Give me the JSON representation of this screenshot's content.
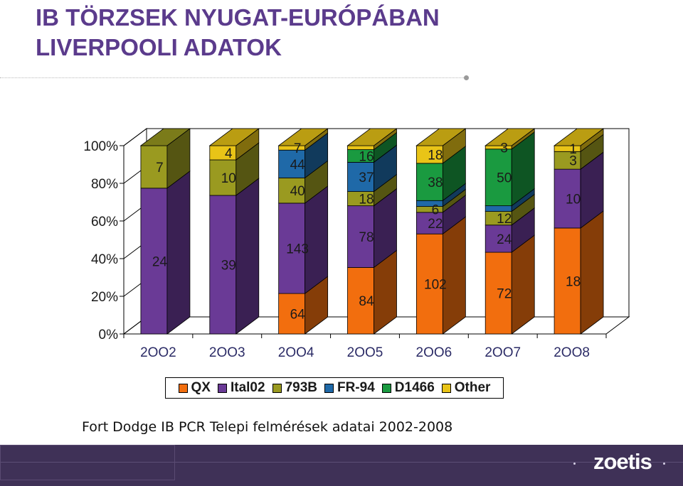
{
  "header": {
    "title_line1": "IB TÖRZSEK NYUGAT-EURÓPÁBAN",
    "title_line2": "LIVERPOOLI ADATOK"
  },
  "chart_data": {
    "type": "bar",
    "stacked": "percent",
    "categories": [
      "2OO2",
      "2OO3",
      "2OO4",
      "2OO5",
      "2OO6",
      "2OO7",
      "2OO8"
    ],
    "series": [
      {
        "name": "QX",
        "color": "#f26e0e",
        "values": [
          0,
          0,
          64,
          84,
          102,
          72,
          18
        ]
      },
      {
        "name": "Ital02",
        "color": "#6a3a96",
        "values": [
          24,
          39,
          143,
          78,
          22,
          24,
          10
        ]
      },
      {
        "name": "793B",
        "color": "#9a9a20",
        "values": [
          7,
          10,
          40,
          18,
          6,
          12,
          3
        ]
      },
      {
        "name": "FR-94",
        "color": "#1f69a8",
        "values": [
          0,
          0,
          44,
          37,
          6,
          5,
          0
        ]
      },
      {
        "name": "D1466",
        "color": "#1a9a40",
        "values": [
          0,
          0,
          0,
          16,
          38,
          50,
          0
        ]
      },
      {
        "name": "Other",
        "color": "#e9c417",
        "values": [
          0,
          4,
          7,
          5,
          18,
          3,
          1
        ]
      }
    ],
    "data_labels": [
      [
        {
          "series": 1,
          "text": "24"
        },
        {
          "series": 2,
          "text": "7"
        }
      ],
      [
        {
          "series": 1,
          "text": "39"
        },
        {
          "series": 2,
          "text": "10"
        },
        {
          "series": 5,
          "text": "4"
        }
      ],
      [
        {
          "series": 0,
          "text": "64"
        },
        {
          "series": 1,
          "text": "143"
        },
        {
          "series": 2,
          "text": "40"
        },
        {
          "series": 3,
          "text": "44"
        },
        {
          "series": 5,
          "text": "7"
        }
      ],
      [
        {
          "series": 0,
          "text": "84"
        },
        {
          "series": 1,
          "text": "78"
        },
        {
          "series": 2,
          "text": "18"
        },
        {
          "series": 3,
          "text": "37"
        },
        {
          "series": 4,
          "text": "16"
        }
      ],
      [
        {
          "series": 0,
          "text": "102"
        },
        {
          "series": 1,
          "text": "22"
        },
        {
          "series": 2,
          "text": "6"
        },
        {
          "series": 4,
          "text": "38"
        },
        {
          "series": 5,
          "text": "18"
        }
      ],
      [
        {
          "series": 0,
          "text": "72"
        },
        {
          "series": 1,
          "text": "24"
        },
        {
          "series": 2,
          "text": "12"
        },
        {
          "series": 4,
          "text": "50"
        },
        {
          "series": 5,
          "text": "3"
        }
      ],
      [
        {
          "series": 0,
          "text": "18"
        },
        {
          "series": 1,
          "text": "10"
        },
        {
          "series": 2,
          "text": "3"
        },
        {
          "series": 5,
          "text": "1"
        }
      ]
    ],
    "y_ticks": [
      "0%",
      "20%",
      "40%",
      "60%",
      "80%",
      "100%"
    ],
    "ylim": [
      0,
      100
    ],
    "grid": false,
    "legend_position": "bottom",
    "style": "3d"
  },
  "source_note": "Fort Dodge IB PCR Telepi felmérések adatai 2002-2008",
  "footer": {
    "logo_text": "zoetis"
  }
}
